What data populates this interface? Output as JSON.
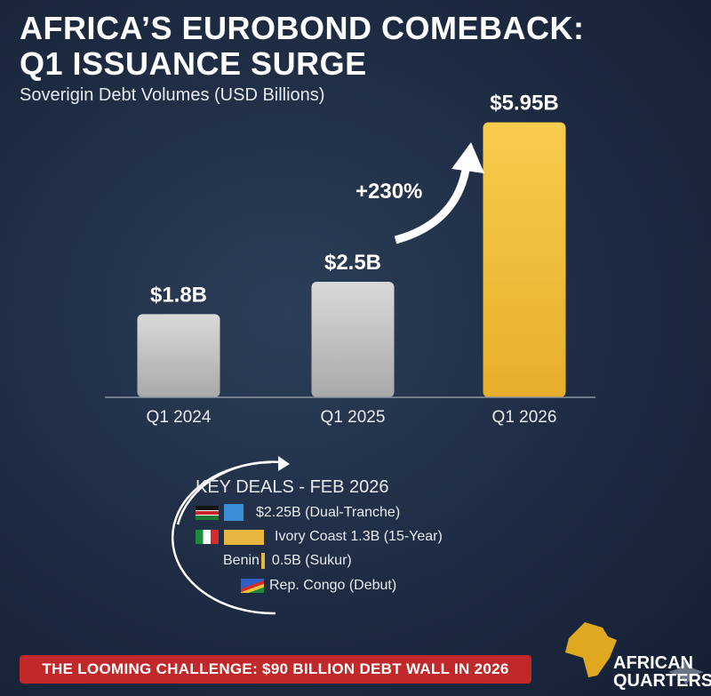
{
  "chart_data": {
    "type": "bar",
    "title": "AFRICA'S EUROBOND COMEBACK: Q1 ISSUANCE SURGE",
    "subtitle": "Soverigin Debt Volumes (USD Billions)",
    "categories": [
      "Q1 2024",
      "Q1 2025",
      "Q1 2026"
    ],
    "values": [
      1.8,
      2.5,
      5.95
    ],
    "data_labels": [
      "$1.8B",
      "$2.5B",
      "$5.95B"
    ],
    "colors": [
      "#c4c4c4",
      "#c4c4c4",
      "#f2c23e"
    ],
    "annotation": "+230%",
    "ylim": [
      0,
      6
    ]
  },
  "title_line1": "AFRICA’S EUROBOND COMEBACK:",
  "title_line2": "Q1 ISSUANCE SURGE",
  "key_deals": {
    "title": "KEY DEALS - FEB 2026",
    "items": [
      {
        "label": "$2.25B (Dual-Tranche)",
        "flag": "kenya-flag",
        "color": "#3a8fd6"
      },
      {
        "label": "Ivory Coast 1.3B (15-Year)",
        "flag": "ivory-coast-flag",
        "color": "#e9b740"
      },
      {
        "prefix": "Benin",
        "label": "0.5B (Sukur)",
        "color": "#e9b740"
      },
      {
        "label": "Rep. Congo (Debut)",
        "flag": "rep-congo-flag"
      }
    ]
  },
  "banner": "THE LOOMING CHALLENGE: $90 BILLION DEBT WALL IN 2026",
  "logo": {
    "line1": "AFRICAN",
    "line2": "QUARTERS"
  }
}
